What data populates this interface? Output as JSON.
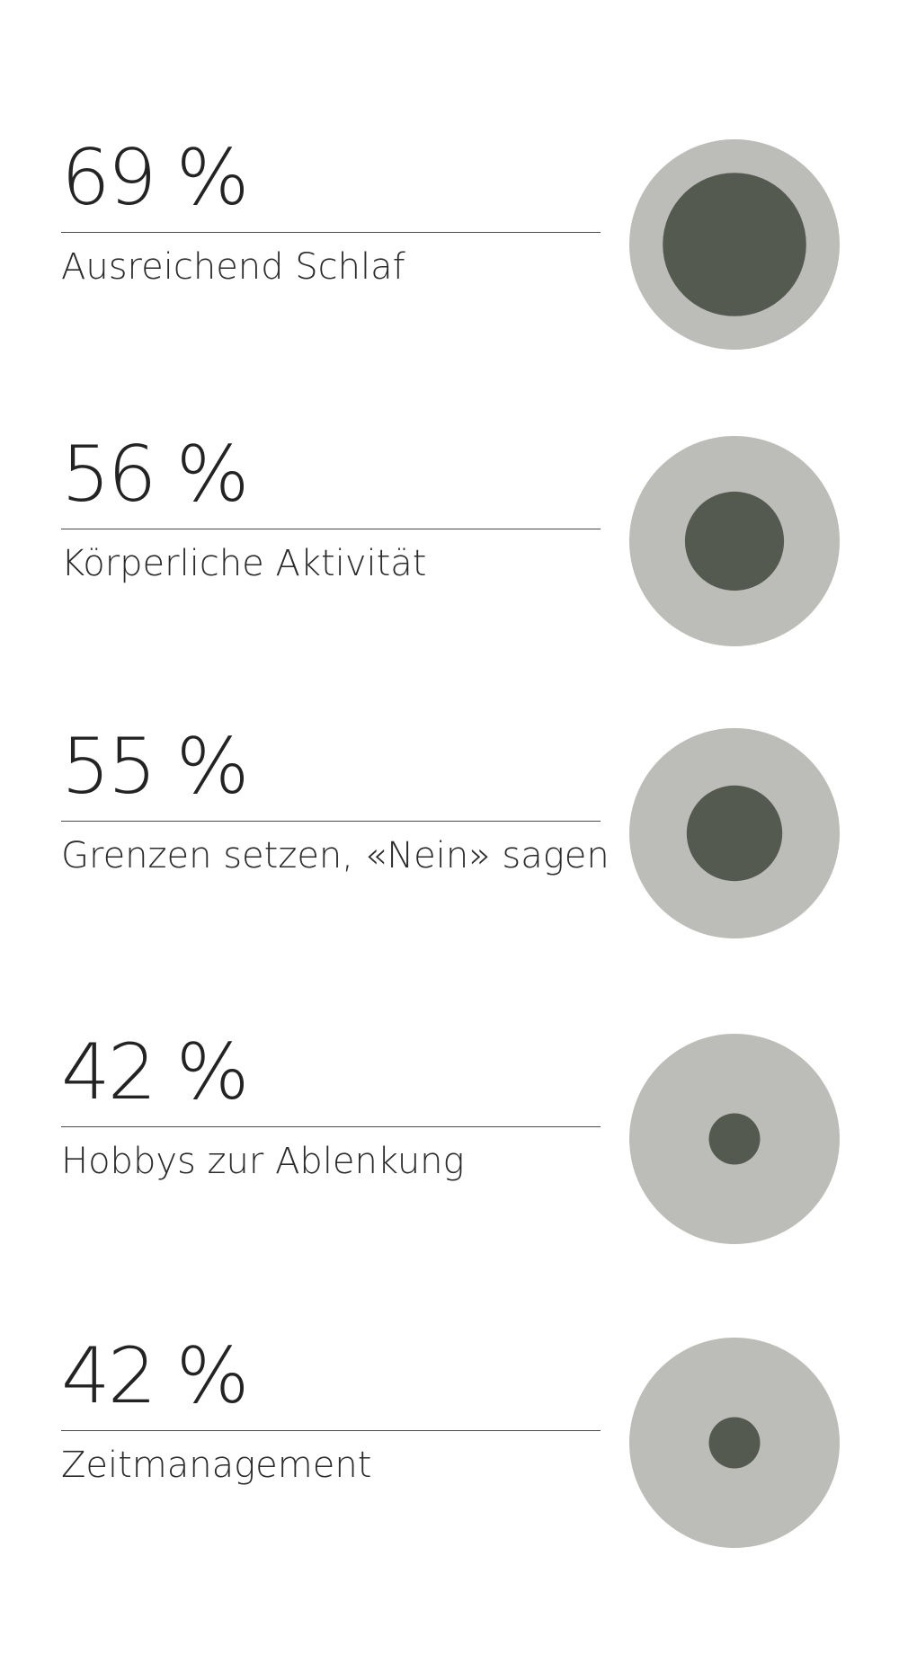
{
  "chart_data": {
    "type": "proportional-circle",
    "unit": "%",
    "items": [
      {
        "value": 69,
        "value_label": "69 %",
        "label": "Ausreichend Schlaf"
      },
      {
        "value": 56,
        "value_label": "56 %",
        "label": "Körperliche Aktivität"
      },
      {
        "value": 55,
        "value_label": "55 %",
        "label": "Grenzen setzen, «Nein» sagen"
      },
      {
        "value": 42,
        "value_label": "42 %",
        "label": "Hobbys zur Ablenkung"
      },
      {
        "value": 42,
        "value_label": "42 %",
        "label": "Zeitmanagement"
      }
    ],
    "colors": {
      "outer_circle": "#bcbcb8",
      "inner_circle": "#555a50",
      "text": "#232323",
      "rule": "#4a4a4a"
    }
  }
}
